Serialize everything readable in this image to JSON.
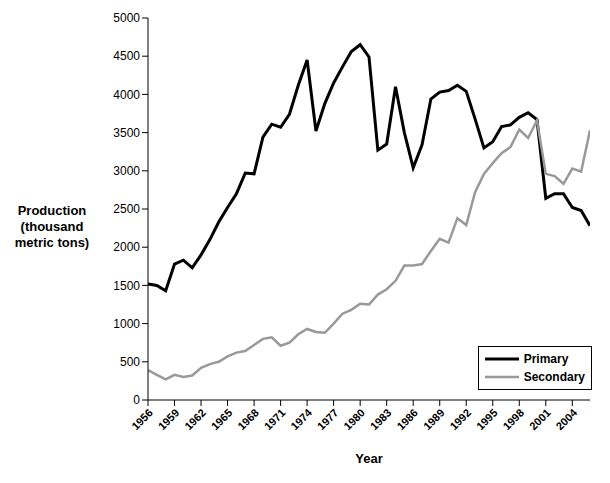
{
  "chart_data": {
    "type": "line",
    "x_label": "Year",
    "y_label": "Production (thousand metric tons)",
    "x": [
      1956,
      1957,
      1958,
      1959,
      1960,
      1961,
      1962,
      1963,
      1964,
      1965,
      1966,
      1967,
      1968,
      1969,
      1970,
      1971,
      1972,
      1973,
      1974,
      1975,
      1976,
      1977,
      1978,
      1979,
      1980,
      1981,
      1982,
      1983,
      1984,
      1985,
      1986,
      1987,
      1988,
      1989,
      1990,
      1991,
      1992,
      1993,
      1994,
      1995,
      1996,
      1997,
      1998,
      1999,
      2000,
      2001,
      2002,
      2003,
      2004,
      2005,
      2006
    ],
    "series": [
      {
        "name": "Primary",
        "color": "#000000",
        "values": [
          1520,
          1500,
          1430,
          1780,
          1830,
          1730,
          1900,
          2100,
          2330,
          2520,
          2700,
          2970,
          2960,
          3440,
          3610,
          3570,
          3740,
          4120,
          4450,
          3520,
          3880,
          4150,
          4360,
          4560,
          4650,
          4490,
          3270,
          3350,
          4100,
          3500,
          3040,
          3340,
          3940,
          4030,
          4050,
          4120,
          4040,
          3680,
          3300,
          3380,
          3580,
          3600,
          3700,
          3760,
          3670,
          2640,
          2700,
          2700,
          2520,
          2480,
          2280
        ]
      },
      {
        "name": "Secondary",
        "color": "#999999",
        "values": [
          390,
          330,
          270,
          330,
          300,
          320,
          420,
          470,
          500,
          570,
          620,
          640,
          720,
          800,
          820,
          710,
          750,
          860,
          930,
          890,
          880,
          1000,
          1130,
          1180,
          1260,
          1250,
          1380,
          1450,
          1560,
          1760,
          1760,
          1780,
          1950,
          2110,
          2060,
          2380,
          2290,
          2720,
          2960,
          3100,
          3230,
          3310,
          3540,
          3430,
          3660,
          2960,
          2930,
          2830,
          3030,
          2990,
          3530
        ]
      }
    ],
    "xlim": [
      1956,
      2006
    ],
    "xticks": [
      1956,
      1959,
      1962,
      1965,
      1968,
      1971,
      1974,
      1977,
      1980,
      1983,
      1986,
      1989,
      1992,
      1995,
      1998,
      2001,
      2004
    ],
    "ylim": [
      0,
      5000
    ],
    "yticks": [
      0,
      500,
      1000,
      1500,
      2000,
      2500,
      3000,
      3500,
      4000,
      4500,
      5000
    ],
    "grid": false,
    "legend": "bottom-right"
  }
}
